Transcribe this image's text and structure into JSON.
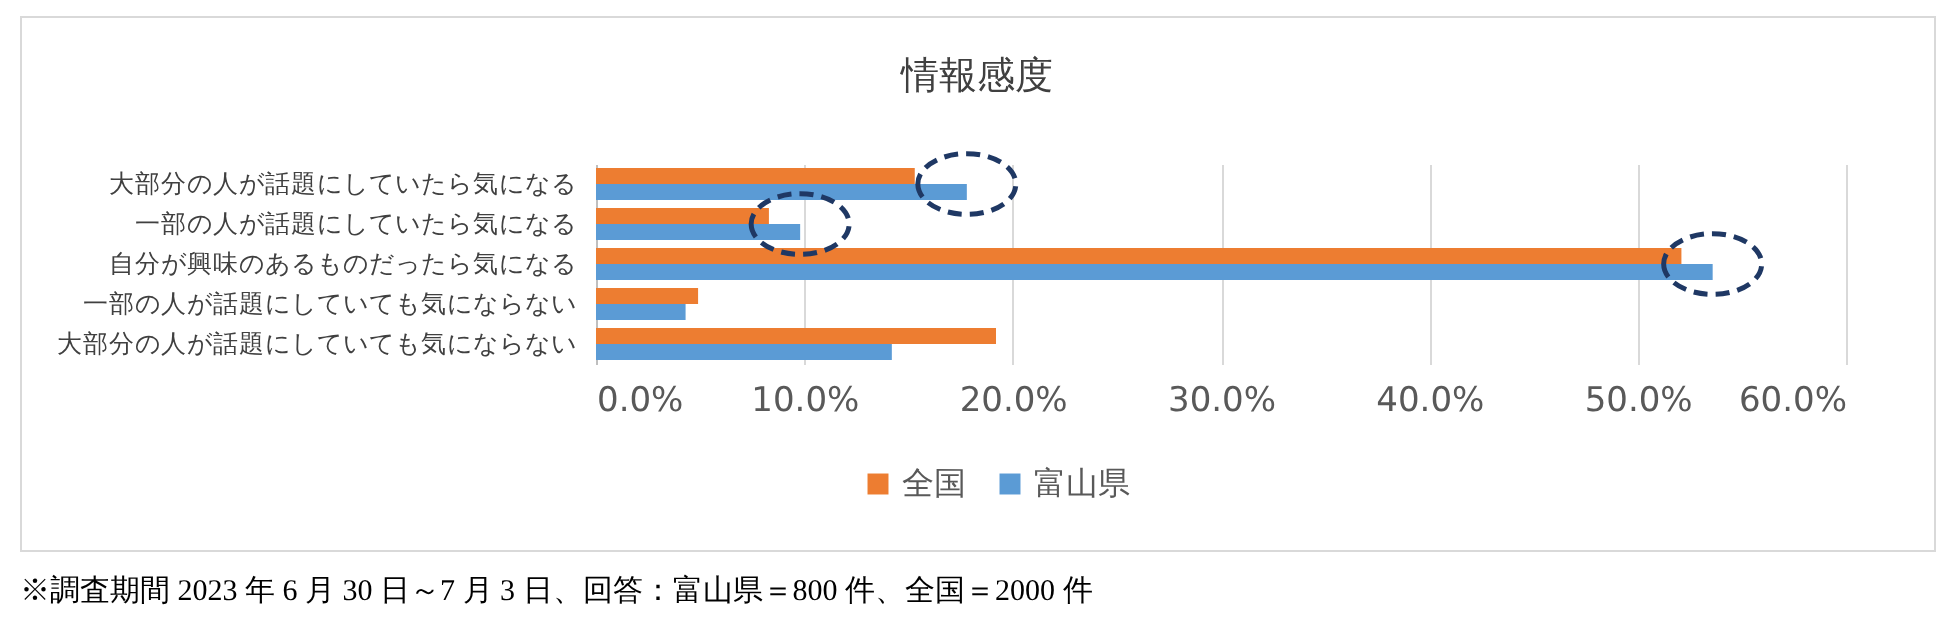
{
  "chart_data": {
    "type": "bar",
    "orientation": "horizontal",
    "title": "情報感度",
    "categories": [
      "大部分の人が話題にしていたら気になる",
      "一部の人が話題にしていたら気になる",
      "自分が興味のあるものだったら気になる",
      "一部の人が話題にしていても気にならない",
      "大部分の人が話題にしていても気にならない"
    ],
    "series": [
      {
        "name": "全国",
        "color": "#ed7d31",
        "values": [
          15.3,
          8.3,
          52.1,
          4.9,
          19.2
        ]
      },
      {
        "name": "富山県",
        "color": "#5b9bd5",
        "values": [
          17.8,
          9.8,
          53.6,
          4.3,
          14.2
        ]
      }
    ],
    "xlim": [
      0,
      60
    ],
    "xticks": [
      {
        "value": 0,
        "label": "0.0%"
      },
      {
        "value": 10,
        "label": "10.0%"
      },
      {
        "value": 20,
        "label": "20.0%"
      },
      {
        "value": 30,
        "label": "30.0%"
      },
      {
        "value": 40,
        "label": "40.0%"
      },
      {
        "value": 50,
        "label": "50.0%"
      },
      {
        "value": 60,
        "label": "60.0%"
      }
    ],
    "grid": "x",
    "legend": "bottom",
    "annotations": [
      "※調査期間 2023 年 6 月 30 日～7 月 3 日、回答：富山県＝800 件、全国＝2000 件"
    ]
  }
}
